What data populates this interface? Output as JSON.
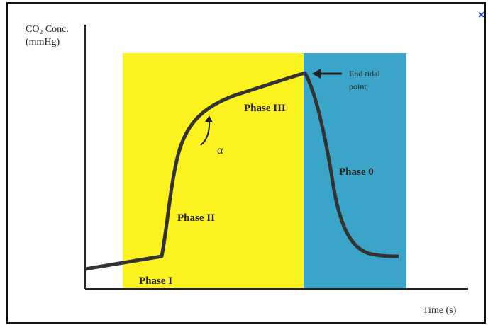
{
  "diagram": {
    "y_axis_label": [
      "CO₂ Conc.",
      "(mmHg)"
    ],
    "x_axis_label": "Time (s)",
    "phases": [
      "Phase I",
      "Phase II",
      "Phase III",
      "Phase 0"
    ],
    "angle_label": "α",
    "annotation": [
      "End tidal",
      "point"
    ],
    "close_button": "×"
  }
}
